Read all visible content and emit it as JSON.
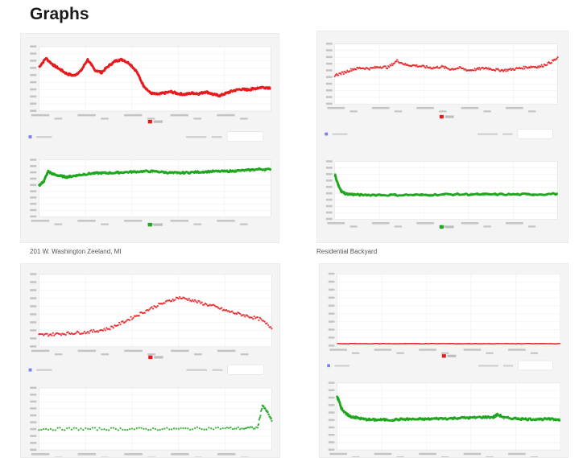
{
  "header": {
    "title": "Graphs"
  },
  "captions": {
    "left": "201 W. Washington Zeeland, MI",
    "right": "Residential Backyard"
  },
  "colors": {
    "card_bg": "#f4f4f4",
    "plot_bg": "#ffffff",
    "grid": "#e6e6e6",
    "red": "#e8191c",
    "green": "#1ea71e"
  },
  "panels": [
    {
      "id": "top-left",
      "charts": [
        {
          "series_color": "red",
          "style": "dense",
          "ylim": [
            0,
            100
          ]
        },
        {
          "series_color": "green",
          "style": "dense",
          "ylim": [
            0,
            100
          ]
        }
      ]
    },
    {
      "id": "top-right",
      "charts": [
        {
          "series_color": "red",
          "style": "scatter",
          "ylim": [
            0,
            100
          ]
        },
        {
          "series_color": "green",
          "style": "dense",
          "ylim": [
            0,
            100
          ]
        }
      ]
    },
    {
      "id": "bottom-left",
      "charts": [
        {
          "series_color": "red",
          "style": "scatter",
          "ylim": [
            0,
            100
          ]
        },
        {
          "series_color": "green",
          "style": "scatter",
          "ylim": [
            0,
            100
          ]
        }
      ]
    },
    {
      "id": "bottom-right",
      "charts": [
        {
          "series_color": "red",
          "style": "line",
          "ylim": [
            0,
            100
          ]
        },
        {
          "series_color": "green",
          "style": "dense",
          "ylim": [
            0,
            100
          ]
        }
      ]
    }
  ],
  "chart_data": [
    {
      "type": "line",
      "panel": "top-left",
      "position": "upper",
      "ylim": [
        0,
        100
      ],
      "x": [
        0,
        3,
        6,
        9,
        12,
        15,
        18,
        21,
        24,
        27,
        30,
        33,
        36,
        39,
        42,
        45,
        48,
        51,
        54,
        57,
        60,
        63,
        66,
        69,
        72,
        75,
        78,
        81,
        84,
        87,
        90,
        93,
        96,
        100
      ],
      "values": [
        68,
        82,
        72,
        65,
        58,
        55,
        62,
        80,
        64,
        60,
        70,
        78,
        80,
        74,
        62,
        40,
        28,
        26,
        28,
        30,
        27,
        26,
        28,
        27,
        30,
        26,
        24,
        28,
        32,
        34,
        33,
        35,
        37,
        36
      ]
    },
    {
      "type": "line",
      "panel": "top-left",
      "position": "lower",
      "ylim": [
        0,
        100
      ],
      "x": [
        0,
        2,
        4,
        6,
        9,
        12,
        15,
        18,
        22,
        26,
        30,
        35,
        40,
        45,
        50,
        55,
        60,
        65,
        70,
        75,
        80,
        85,
        90,
        95,
        100
      ],
      "values": [
        55,
        62,
        80,
        75,
        72,
        70,
        72,
        74,
        76,
        77,
        77,
        78,
        79,
        80,
        80,
        78,
        77,
        78,
        79,
        80,
        80,
        81,
        82,
        84,
        83
      ]
    },
    {
      "type": "scatter",
      "panel": "top-right",
      "position": "upper",
      "ylim": [
        0,
        100
      ],
      "x": [
        0,
        4,
        8,
        12,
        16,
        20,
        24,
        28,
        32,
        36,
        40,
        44,
        48,
        52,
        56,
        60,
        64,
        68,
        72,
        76,
        80,
        84,
        88,
        92,
        96,
        100
      ],
      "values": [
        48,
        52,
        58,
        60,
        59,
        62,
        61,
        72,
        65,
        64,
        62,
        60,
        62,
        58,
        60,
        56,
        58,
        60,
        57,
        56,
        58,
        60,
        62,
        62,
        68,
        76
      ]
    },
    {
      "type": "line",
      "panel": "top-right",
      "position": "lower",
      "ylim": [
        0,
        100
      ],
      "x": [
        0,
        1,
        2,
        3,
        5,
        8,
        12,
        20,
        30,
        40,
        50,
        60,
        70,
        80,
        90,
        100
      ],
      "values": [
        78,
        65,
        55,
        48,
        44,
        43,
        42,
        42,
        42,
        42,
        43,
        43,
        43,
        43,
        43,
        44
      ]
    },
    {
      "type": "scatter",
      "panel": "bottom-left",
      "position": "upper",
      "ylim": [
        0,
        100
      ],
      "x": [
        0,
        5,
        10,
        15,
        20,
        25,
        30,
        35,
        40,
        45,
        50,
        55,
        60,
        65,
        70,
        75,
        80,
        85,
        90,
        95,
        100
      ],
      "values": [
        16,
        17,
        18,
        19,
        20,
        22,
        25,
        32,
        40,
        48,
        56,
        62,
        68,
        65,
        60,
        56,
        50,
        46,
        42,
        38,
        26
      ]
    },
    {
      "type": "scatter",
      "panel": "bottom-left",
      "position": "lower",
      "ylim": [
        0,
        100
      ],
      "x": [
        0,
        10,
        20,
        30,
        40,
        50,
        60,
        70,
        80,
        88,
        94,
        96,
        98,
        100
      ],
      "values": [
        34,
        34,
        34,
        34,
        34,
        34,
        34,
        35,
        35,
        35,
        36,
        72,
        62,
        48
      ]
    },
    {
      "type": "line",
      "panel": "bottom-right",
      "position": "upper",
      "ylim": [
        0,
        100
      ],
      "x": [
        0,
        10,
        20,
        30,
        40,
        50,
        60,
        70,
        80,
        90,
        100
      ],
      "values": [
        3,
        3,
        3,
        3,
        3,
        3,
        3,
        3,
        3,
        3,
        3
      ]
    },
    {
      "type": "line",
      "panel": "bottom-right",
      "position": "lower",
      "ylim": [
        0,
        100
      ],
      "x": [
        0,
        1,
        2,
        4,
        6,
        9,
        12,
        16,
        20,
        25,
        30,
        35,
        40,
        45,
        50,
        55,
        60,
        65,
        70,
        72,
        75,
        80,
        85,
        90,
        95,
        100
      ],
      "values": [
        80,
        72,
        62,
        54,
        50,
        48,
        46,
        45,
        45,
        45,
        46,
        46,
        46,
        47,
        47,
        48,
        48,
        49,
        49,
        53,
        48,
        47,
        46,
        46,
        46,
        45
      ]
    }
  ]
}
